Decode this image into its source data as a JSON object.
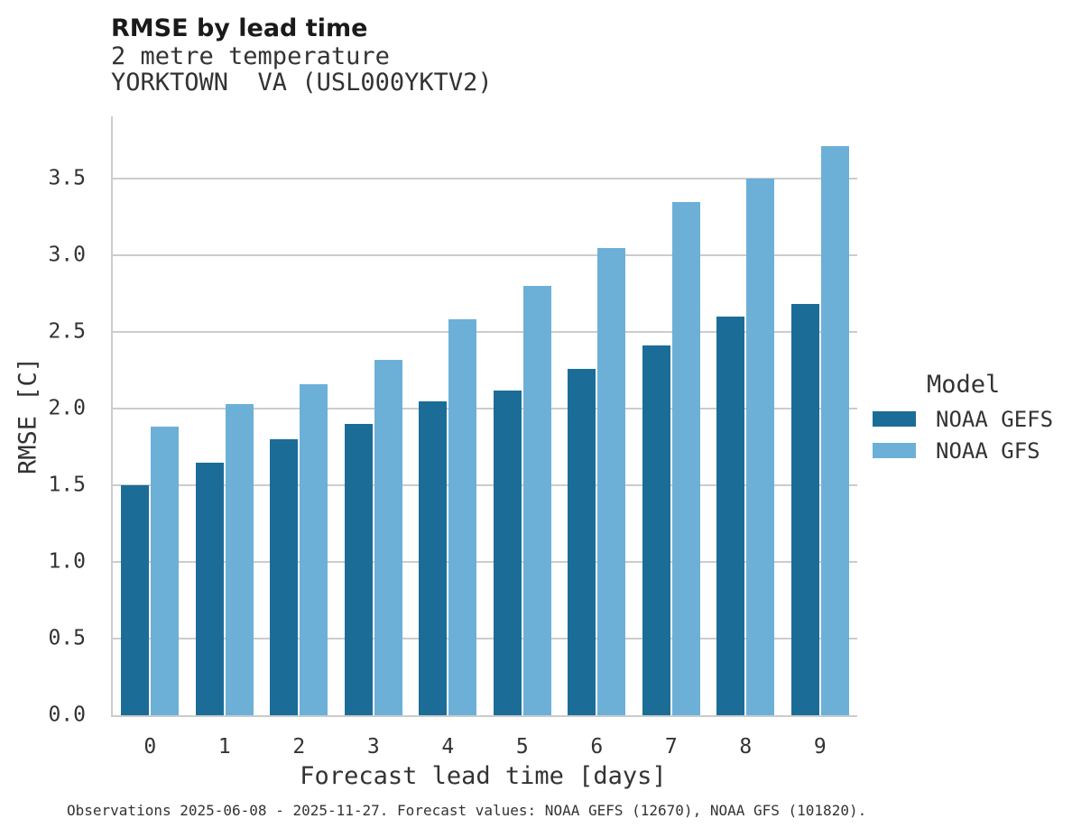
{
  "header": {
    "title": "RMSE by lead time",
    "subtitle": "2 metre temperature",
    "station_line": "YORKTOWN  VA (USL000YKTV2)"
  },
  "legend": {
    "title": "Model",
    "items": [
      {
        "label": "NOAA GEFS",
        "color": "#1b6d98"
      },
      {
        "label": "NOAA GFS",
        "color": "#6cb0d8"
      }
    ]
  },
  "footer": {
    "caption": "Observations 2025-06-08 - 2025-11-27. Forecast values: NOAA GEFS (12670), NOAA GFS (101820)."
  },
  "chart_data": {
    "type": "bar",
    "title": "RMSE by lead time",
    "subtitle": "2 metre temperature",
    "station": "YORKTOWN  VA (USL000YKTV2)",
    "xlabel": "Forecast lead time [days]",
    "ylabel": "RMSE [C]",
    "categories": [
      "0",
      "1",
      "2",
      "3",
      "4",
      "5",
      "6",
      "7",
      "8",
      "9"
    ],
    "series": [
      {
        "name": "NOAA GEFS",
        "color": "#1b6d98",
        "values": [
          1.5,
          1.65,
          1.8,
          1.9,
          2.05,
          2.12,
          2.26,
          2.41,
          2.6,
          2.68
        ]
      },
      {
        "name": "NOAA GFS",
        "color": "#6cb0d8",
        "values": [
          1.88,
          2.03,
          2.16,
          2.32,
          2.58,
          2.8,
          3.05,
          3.35,
          3.5,
          3.71
        ]
      }
    ],
    "ylim": [
      0.0,
      3.9
    ],
    "yticks": [
      "0.0",
      "0.5",
      "1.0",
      "1.5",
      "2.0",
      "2.5",
      "3.0",
      "3.5"
    ],
    "grid": true,
    "grid_color": "#cccccc",
    "legend_position": "right",
    "background": "#ffffff"
  }
}
